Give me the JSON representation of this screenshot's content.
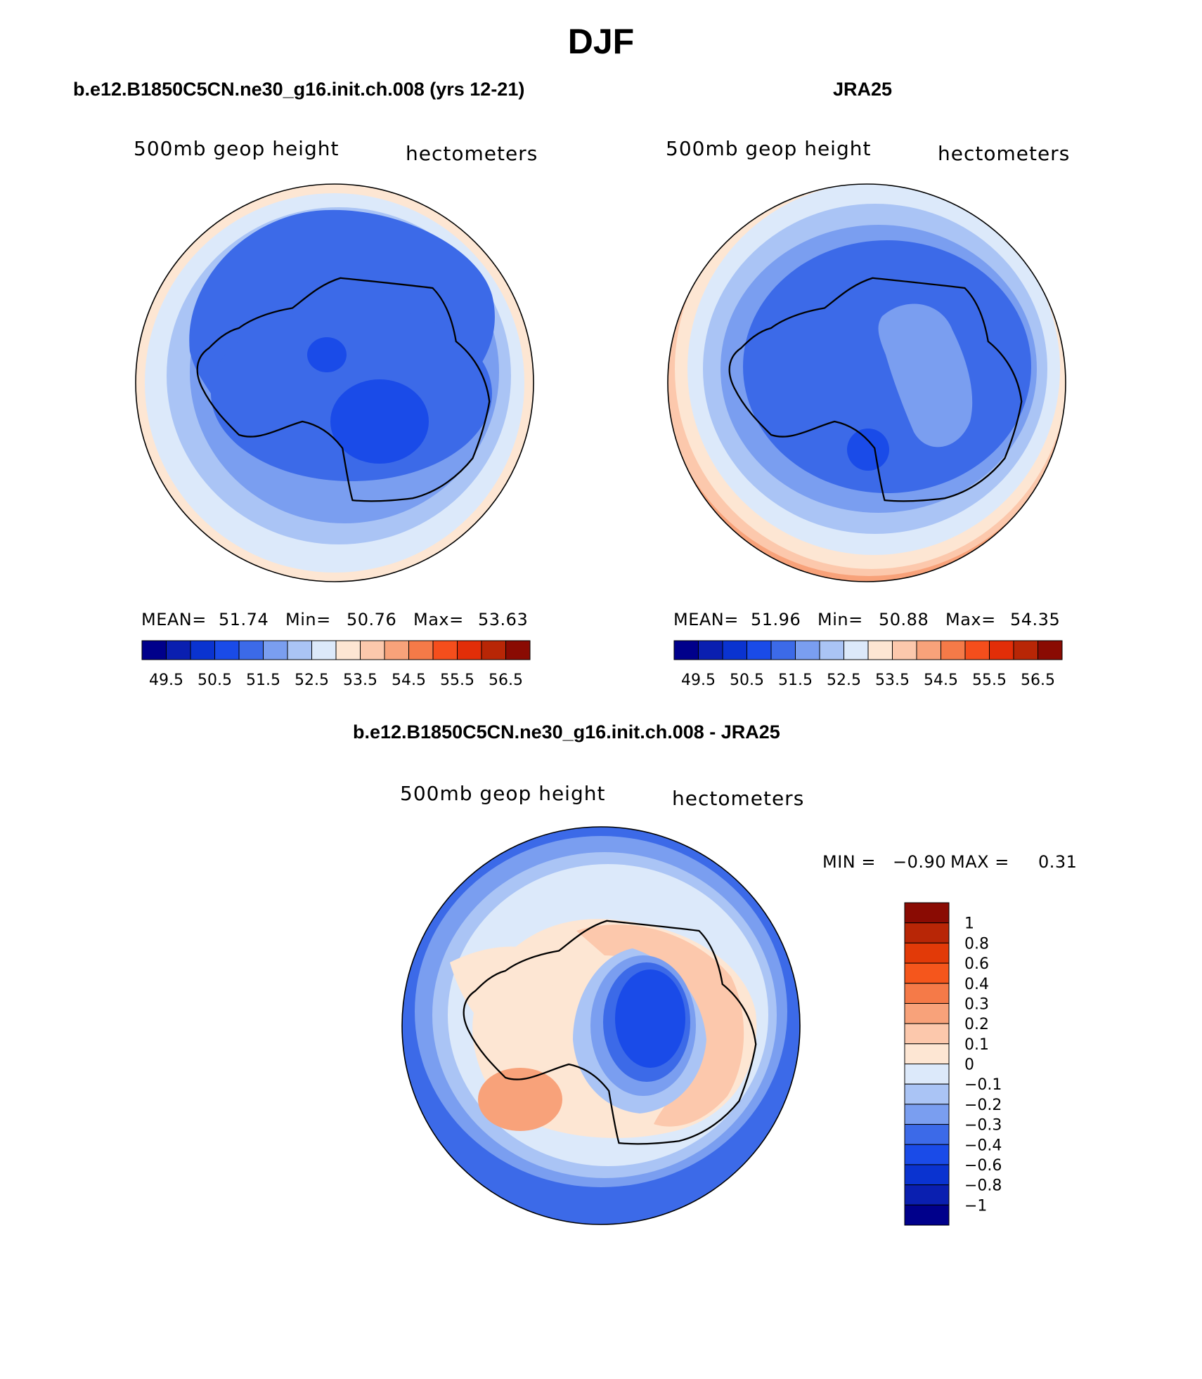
{
  "title": "DJF",
  "panels": {
    "model": {
      "title": "b.e12.B1850C5CN.ne30_g16.init.ch.008 (yrs 12-21)",
      "left_label": "500mb geop height",
      "right_label": "hectometers",
      "stats": {
        "mean_label": "MEAN=",
        "mean": "51.74",
        "min_label": "Min=",
        "min": "50.76",
        "max_label": "Max=",
        "max": "53.63"
      }
    },
    "obs": {
      "title": "JRA25",
      "left_label": "500mb geop height",
      "right_label": "hectometers",
      "stats": {
        "mean_label": "MEAN=",
        "mean": "51.96",
        "min_label": "Min=",
        "min": "50.88",
        "max_label": "Max=",
        "max": "54.35"
      }
    },
    "diff": {
      "title": "b.e12.B1850C5CN.ne30_g16.init.ch.008 - JRA25",
      "left_label": "500mb geop height",
      "right_label": "hectometers",
      "stats": {
        "min_label": "MIN =",
        "min": "−0.90",
        "max_label": "MAX =",
        "max": "0.31"
      }
    }
  },
  "colorbar_field": {
    "tick_labels": [
      "49.5",
      "50.5",
      "51.5",
      "52.5",
      "53.5",
      "54.5",
      "55.5",
      "56.5"
    ],
    "colors": [
      "#00008b",
      "#0a1fb0",
      "#0a33d0",
      "#1a4be8",
      "#3c6ae8",
      "#7a9ef0",
      "#aac4f5",
      "#dce9fa",
      "#fde6d3",
      "#fcc8ac",
      "#f8a27a",
      "#f57a48",
      "#f54e1c",
      "#e22e08",
      "#b82606",
      "#8a0b03"
    ]
  },
  "colorbar_diff": {
    "labels": [
      "1",
      "0.8",
      "0.6",
      "0.4",
      "0.3",
      "0.2",
      "0.1",
      "0",
      "−0.1",
      "−0.2",
      "−0.3",
      "−0.4",
      "−0.6",
      "−0.8",
      "−1"
    ],
    "colors": [
      "#8a0b03",
      "#b82606",
      "#e23a08",
      "#f5561c",
      "#f57a48",
      "#f8a27a",
      "#fcc8ac",
      "#fde6d3",
      "#dce9fa",
      "#aac4f5",
      "#7a9ef0",
      "#3c6ae8",
      "#1a4be8",
      "#0a33d0",
      "#0a1fb0",
      "#00008b"
    ]
  }
}
